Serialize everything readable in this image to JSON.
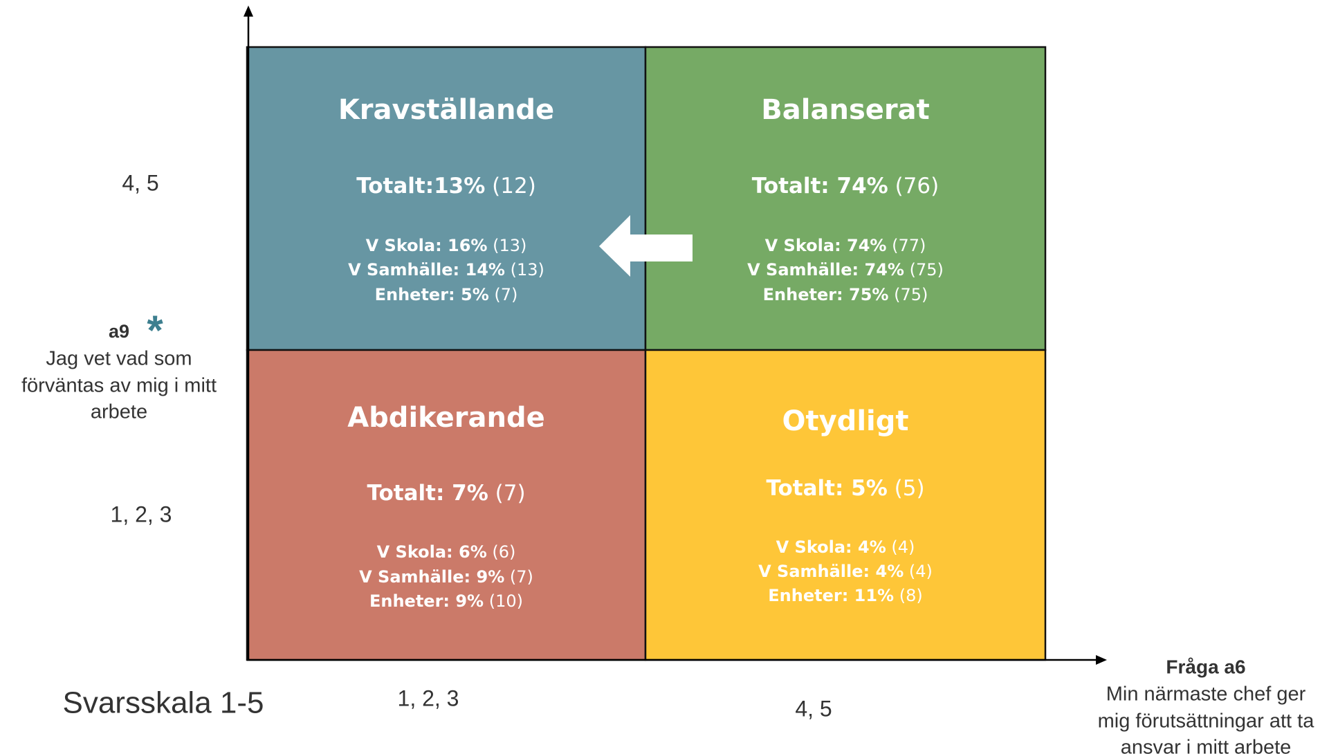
{
  "y_axis": {
    "high": "4, 5",
    "low": "1, 2, 3",
    "question_id": "a9",
    "marker": "*",
    "question_lines": [
      "Jag vet vad som",
      "förväntas av mig i mitt",
      "arbete"
    ]
  },
  "x_axis": {
    "low": "1, 2, 3",
    "high": "4, 5",
    "question_id": "Fråga a6",
    "question_lines": [
      "Min närmaste chef ger",
      "mig förutsättningar att ta",
      "ansvar i mitt arbete"
    ]
  },
  "scale_label": "Svarsskala 1-5",
  "quadrants": [
    {
      "title": "Kravställande",
      "color": "#6796a3",
      "total": {
        "bold": "Totalt:13%",
        "count": "(12)"
      },
      "rows": [
        {
          "bold": "V Skola: 16%",
          "count": "(13)"
        },
        {
          "bold": "V Samhälle: 14%",
          "count": "(13)"
        },
        {
          "bold": "Enheter: 5%",
          "count": "(7)"
        }
      ]
    },
    {
      "title": "Balanserat",
      "color": "#76aa65",
      "total": {
        "bold": "Totalt: 74%",
        "count": "(76)"
      },
      "rows": [
        {
          "bold": "V Skola: 74%",
          "count": "(77)"
        },
        {
          "bold": "V Samhälle: 74%",
          "count": "(75)"
        },
        {
          "bold": "Enheter: 75%",
          "count": "(75)"
        }
      ]
    },
    {
      "title": "Abdikerande",
      "color": "#cb7a69",
      "total": {
        "bold": "Totalt: 7%",
        "count": "(7)"
      },
      "rows": [
        {
          "bold": "V Skola: 6%",
          "count": "(6)"
        },
        {
          "bold": "V Samhälle: 9%",
          "count": "(7)"
        },
        {
          "bold": "Enheter: 9%",
          "count": "(10)"
        }
      ]
    },
    {
      "title": "Otydligt",
      "color": "#fec638",
      "total": {
        "bold": "Totalt: 5%",
        "count": "(5)"
      },
      "rows": [
        {
          "bold": "V Skola: 4%",
          "count": "(4)"
        },
        {
          "bold": "V Samhälle: 4%",
          "count": "(4)"
        },
        {
          "bold": "Enheter: 11%",
          "count": "(8)"
        }
      ]
    }
  ]
}
